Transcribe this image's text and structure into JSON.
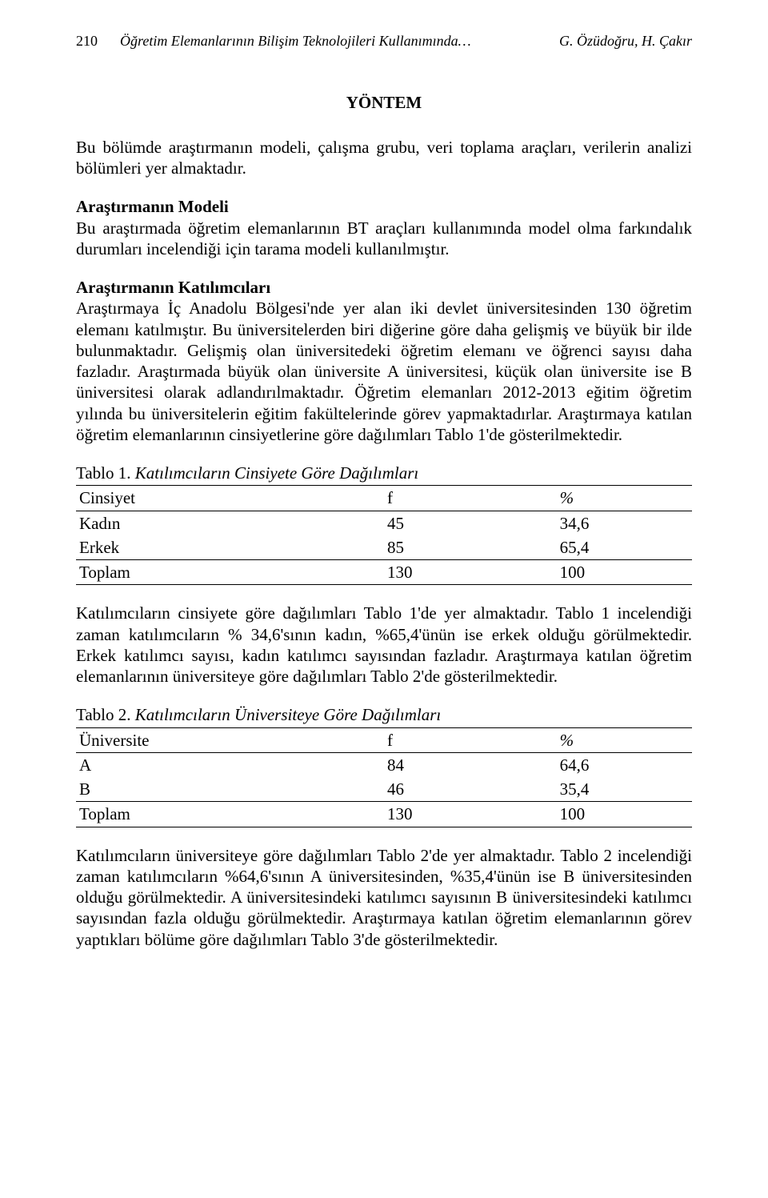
{
  "header": {
    "page_number": "210",
    "running_title": "Öğretim Elemanlarının Bilişim Teknolojileri Kullanımında…",
    "authors": "G. Özüdoğru, H. Çakır"
  },
  "section_title": "YÖNTEM",
  "para_intro": "Bu bölümde araştırmanın modeli, çalışma grubu, veri toplama araçları, verilerin analizi bölümleri yer almaktadır.",
  "sub_model_head": "Araştırmanın Modeli",
  "sub_model_body": "Bu araştırmada öğretim elemanlarının BT araçları kullanımında model olma farkındalık durumları incelendiği için tarama modeli kullanılmıştır.",
  "sub_part_head": "Araştırmanın Katılımcıları",
  "sub_part_body": "Araştırmaya İç Anadolu Bölgesi'nde yer alan iki devlet üniversitesinden 130 öğretim elemanı katılmıştır. Bu üniversitelerden biri diğerine göre daha gelişmiş ve büyük bir ilde bulunmaktadır. Gelişmiş olan üniversitedeki öğretim elemanı ve öğrenci sayısı daha fazladır. Araştırmada büyük olan üniversite A üniversitesi, küçük olan üniversite ise B üniversitesi olarak adlandırılmaktadır. Öğretim elemanları 2012-2013 eğitim öğretim yılında bu üniversitelerin eğitim fakültelerinde görev yapmaktadırlar. Araştırmaya katılan öğretim elemanlarının cinsiyetlerine göre dağılımları Tablo 1'de gösterilmektedir.",
  "table1": {
    "caption_lead": "Tablo 1. ",
    "caption_title": "Katılımcıların Cinsiyete Göre Dağılımları",
    "col0": "Cinsiyet",
    "col1": "f",
    "col2": "%",
    "rows": [
      {
        "c0": "Kadın",
        "c1": "45",
        "c2": "34,6"
      },
      {
        "c0": "Erkek",
        "c1": "85",
        "c2": "65,4"
      }
    ],
    "total": {
      "c0": "Toplam",
      "c1": "130",
      "c2": "100"
    }
  },
  "para_after_t1": "Katılımcıların cinsiyete göre dağılımları Tablo 1'de yer almaktadır. Tablo 1 incelendiği zaman katılımcıların % 34,6'sının kadın, %65,4'ünün ise erkek olduğu görülmektedir. Erkek katılımcı sayısı, kadın katılımcı sayısından fazladır. Araştırmaya katılan öğretim elemanlarının üniversiteye göre dağılımları Tablo 2'de gösterilmektedir.",
  "table2": {
    "caption_lead": "Tablo 2. ",
    "caption_title": "Katılımcıların Üniversiteye Göre Dağılımları",
    "col0": "Üniversite",
    "col1": "f",
    "col2": "%",
    "rows": [
      {
        "c0": "A",
        "c1": "84",
        "c2": "64,6"
      },
      {
        "c0": "B",
        "c1": "46",
        "c2": "35,4"
      }
    ],
    "total": {
      "c0": "Toplam",
      "c1": "130",
      "c2": "100"
    }
  },
  "para_after_t2": "Katılımcıların üniversiteye göre dağılımları Tablo 2'de yer almaktadır. Tablo 2 incelendiği zaman katılımcıların %64,6'sının A üniversitesinden, %35,4'ünün ise B üniversitesinden olduğu görülmektedir. A üniversitesindeki katılımcı sayısının B üniversitesindeki katılımcı sayısından fazla olduğu görülmektedir. Araştırmaya katılan öğretim elemanlarının görev yaptıkları bölüme göre dağılımları Tablo 3'de gösterilmektedir."
}
